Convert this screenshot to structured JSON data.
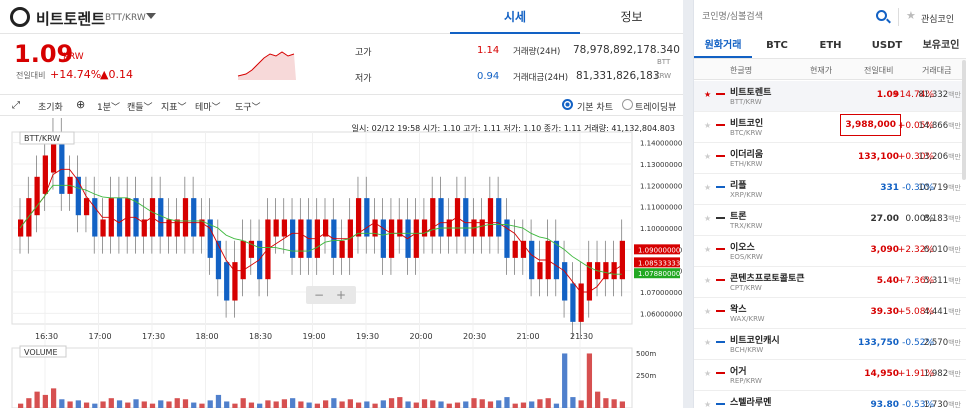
{
  "coin": {
    "name": "비트토렌트",
    "pair": "BTT/KRW",
    "price": "1.09",
    "currency": "KRW",
    "change_label": "전일대비",
    "change_pct": "+14.74%",
    "change_abs": "▲0.14"
  },
  "tabs": {
    "price": "시세",
    "info": "정보"
  },
  "stats": {
    "high_label": "고가",
    "high": "1.14",
    "low_label": "저가",
    "low": "0.94",
    "vol_label": "거래량(24H)",
    "vol": "78,978,892,178.340",
    "vol_unit": "BTT",
    "amt_label": "거래대금(24H)",
    "amt": "81,331,826,183",
    "amt_unit": "KRW"
  },
  "toolbar": {
    "reset": "초기화",
    "interval": "1분",
    "candle": "캔들",
    "indicator": "지표",
    "theme": "테마",
    "tools": "도구",
    "basic_chart": "기본 차트",
    "tradingview": "트레이딩뷰"
  },
  "chart_info": "일시: 02/12 19:58 시가: 1.10 고가: 1.11 저가: 1.10 종가: 1.11 거래량: 41,132,804.803",
  "chart_data": {
    "type": "candlestick",
    "pair_label": "BTT/KRW",
    "volume_label": "VOLUME",
    "x_ticks": [
      "16:30",
      "17:00",
      "17:30",
      "18:00",
      "18:30",
      "19:00",
      "19:30",
      "20:00",
      "20:30",
      "21:00",
      "21:30"
    ],
    "y_ticks": [
      "1.14000000",
      "1.13000000",
      "1.12000000",
      "1.11000000",
      "1.10000000",
      "1.09000000",
      "1.08000000",
      "1.07000000",
      "1.06000000"
    ],
    "ylim": [
      1.055,
      1.145
    ],
    "price_tags": [
      {
        "label": "1.09000000",
        "value": 1.09,
        "color": "#d60000"
      },
      {
        "label": "1.08533333",
        "value": 1.0853,
        "color": "#d60000"
      },
      {
        "label": "1.07880000",
        "value": 1.0788,
        "color": "#22a822"
      }
    ],
    "vol_ticks": [
      "500m",
      "250m"
    ],
    "closes": [
      1.1,
      1.11,
      1.12,
      1.13,
      1.14,
      1.12,
      1.12,
      1.11,
      1.11,
      1.1,
      1.1,
      1.11,
      1.1,
      1.11,
      1.1,
      1.1,
      1.11,
      1.1,
      1.1,
      1.1,
      1.11,
      1.1,
      1.1,
      1.09,
      1.08,
      1.07,
      1.08,
      1.09,
      1.09,
      1.08,
      1.1,
      1.1,
      1.1,
      1.09,
      1.1,
      1.09,
      1.1,
      1.1,
      1.09,
      1.09,
      1.1,
      1.11,
      1.1,
      1.1,
      1.09,
      1.1,
      1.1,
      1.09,
      1.1,
      1.1,
      1.11,
      1.1,
      1.1,
      1.11,
      1.1,
      1.1,
      1.1,
      1.11,
      1.1,
      1.09,
      1.09,
      1.09,
      1.08,
      1.08,
      1.09,
      1.08,
      1.07,
      1.06,
      1.07,
      1.08,
      1.08,
      1.08,
      1.08,
      1.09
    ],
    "volumes": [
      40,
      90,
      150,
      120,
      180,
      80,
      60,
      70,
      50,
      40,
      60,
      90,
      70,
      50,
      80,
      60,
      40,
      70,
      60,
      90,
      80,
      50,
      40,
      70,
      120,
      60,
      40,
      90,
      50,
      40,
      70,
      60,
      80,
      90,
      60,
      50,
      40,
      70,
      90,
      60,
      80,
      50,
      60,
      40,
      70,
      90,
      100,
      60,
      50,
      80,
      70,
      60,
      40,
      50,
      60,
      90,
      80,
      60,
      70,
      100,
      40,
      50,
      60,
      80,
      90,
      40,
      500,
      100,
      70,
      500,
      150,
      90,
      80,
      60
    ]
  },
  "search": {
    "placeholder": "코인명/심볼검색",
    "fav": "관심코인"
  },
  "market_tabs": [
    "원화거래",
    "BTC",
    "ETH",
    "USDT",
    "보유코인"
  ],
  "cols": [
    "한글명",
    "현재가",
    "전일대비",
    "거래대금"
  ],
  "coins": [
    {
      "name": "비트토렌트",
      "sym": "BTT/KRW",
      "price": "1.09",
      "chg": "+14.74%",
      "vol": "81,332",
      "unit": "백만",
      "dir": "up"
    },
    {
      "name": "비트코인",
      "sym": "BTC/KRW",
      "price": "3,988,000",
      "chg": "+0.05%",
      "vol": "14,866",
      "unit": "백만",
      "dir": "up"
    },
    {
      "name": "이더리움",
      "sym": "ETH/KRW",
      "price": "133,100",
      "chg": "+0.30%",
      "vol": "13,206",
      "unit": "백만",
      "dir": "up"
    },
    {
      "name": "리플",
      "sym": "XRP/KRW",
      "price": "331",
      "chg": "-0.30%",
      "vol": "10,719",
      "unit": "백만",
      "dir": "down"
    },
    {
      "name": "트론",
      "sym": "TRX/KRW",
      "price": "27.00",
      "chg": "0.00%",
      "vol": "8,183",
      "unit": "백만",
      "dir": "flat"
    },
    {
      "name": "이오스",
      "sym": "EOS/KRW",
      "price": "3,090",
      "chg": "+2.32%",
      "vol": "6,010",
      "unit": "백만",
      "dir": "up"
    },
    {
      "name": "콘텐츠프로토콜토큰",
      "sym": "CPT/KRW",
      "price": "5.40",
      "chg": "+7.36%",
      "vol": "5,311",
      "unit": "백만",
      "dir": "up"
    },
    {
      "name": "왁스",
      "sym": "WAX/KRW",
      "price": "39.30",
      "chg": "+5.08%",
      "vol": "4,441",
      "unit": "백만",
      "dir": "up"
    },
    {
      "name": "비트코인캐시",
      "sym": "BCH/KRW",
      "price": "133,750",
      "chg": "-0.52%",
      "vol": "2,570",
      "unit": "백만",
      "dir": "down"
    },
    {
      "name": "어거",
      "sym": "REP/KRW",
      "price": "14,950",
      "chg": "+1.91%",
      "vol": "1,982",
      "unit": "백만",
      "dir": "up"
    },
    {
      "name": "스텔라루멘",
      "sym": "XLM/KRW",
      "price": "93.80",
      "chg": "-0.53%",
      "vol": "1,730",
      "unit": "백만",
      "dir": "down"
    }
  ],
  "colors": {
    "up": "#d60000",
    "down": "#1261c4",
    "accent": "#1261c4"
  }
}
